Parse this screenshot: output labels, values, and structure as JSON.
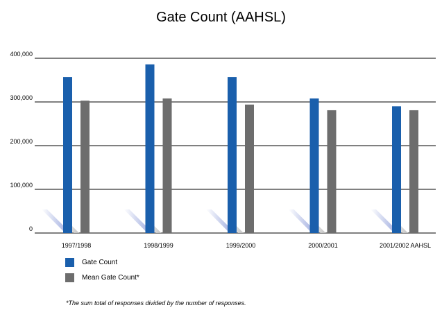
{
  "chart_data": {
    "type": "bar",
    "title": "Gate Count (AAHSL)",
    "categories": [
      "1997/1998",
      "1998/1999",
      "1999/2000",
      "2000/2001",
      "2001/2002 AAHSL"
    ],
    "series": [
      {
        "name": "Gate Count",
        "color": "#1a5fac",
        "values": [
          357000,
          386000,
          357000,
          308000,
          290000
        ]
      },
      {
        "name": "Mean Gate Count*",
        "color": "#6d6d6d",
        "values": [
          303000,
          308000,
          294000,
          281000,
          281000
        ]
      }
    ],
    "ylim": [
      0,
      400000
    ],
    "yticks": [
      {
        "value": 0,
        "label": "0"
      },
      {
        "value": 100000,
        "label": "100,000"
      },
      {
        "value": 200000,
        "label": "200,000"
      },
      {
        "value": 300000,
        "label": "300,000"
      },
      {
        "value": 400000,
        "label": "400,000"
      }
    ],
    "grid": true,
    "legend_position": "bottom-left",
    "footnote": "*The sum total of responses divided by the number of responses."
  }
}
